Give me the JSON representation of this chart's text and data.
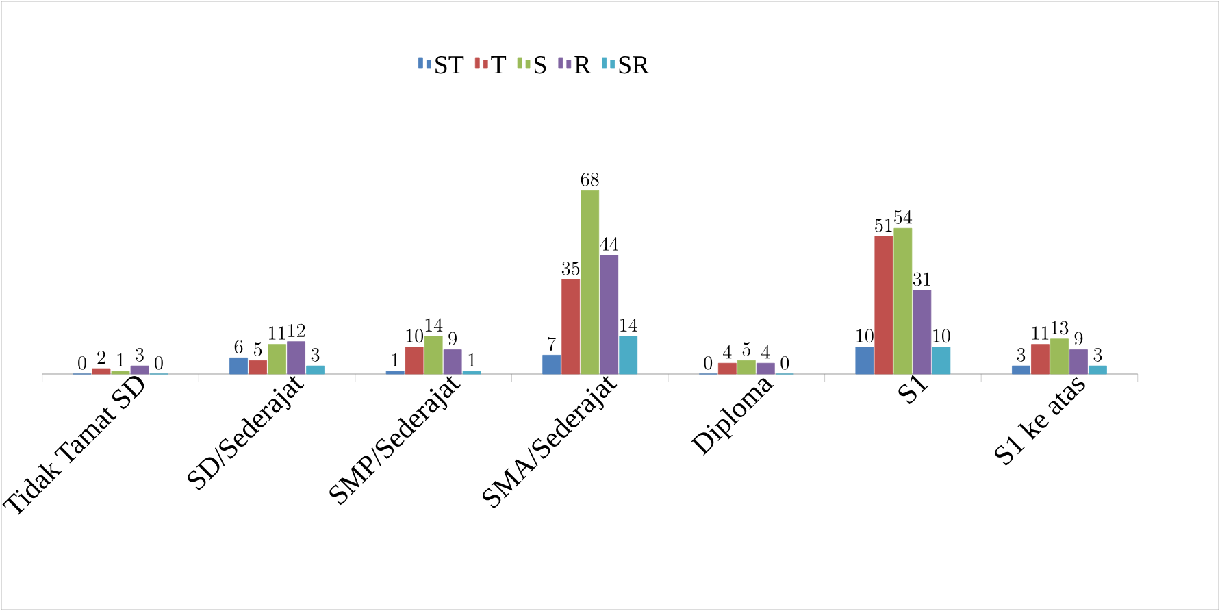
{
  "chart_data": {
    "type": "bar",
    "categories": [
      "Tidak Tamat SD",
      "SD/Sederajat",
      "SMP/Sederajat",
      "SMA/Sederajat",
      "Diploma",
      "S1",
      "S1 ke atas"
    ],
    "series": [
      {
        "name": "ST",
        "color": "#4f81bd",
        "values": [
          0,
          6,
          1,
          7,
          0,
          10,
          3
        ]
      },
      {
        "name": "T",
        "color": "#c0504d",
        "values": [
          2,
          5,
          10,
          35,
          4,
          51,
          11
        ]
      },
      {
        "name": "S",
        "color": "#9bbb59",
        "values": [
          1,
          11,
          14,
          68,
          5,
          54,
          13
        ]
      },
      {
        "name": "R",
        "color": "#8064a2",
        "values": [
          3,
          12,
          9,
          44,
          4,
          31,
          9
        ]
      },
      {
        "name": "SR",
        "color": "#4bacc6",
        "values": [
          0,
          3,
          1,
          14,
          0,
          10,
          3
        ]
      }
    ],
    "data_labels": true,
    "legend": "top"
  }
}
